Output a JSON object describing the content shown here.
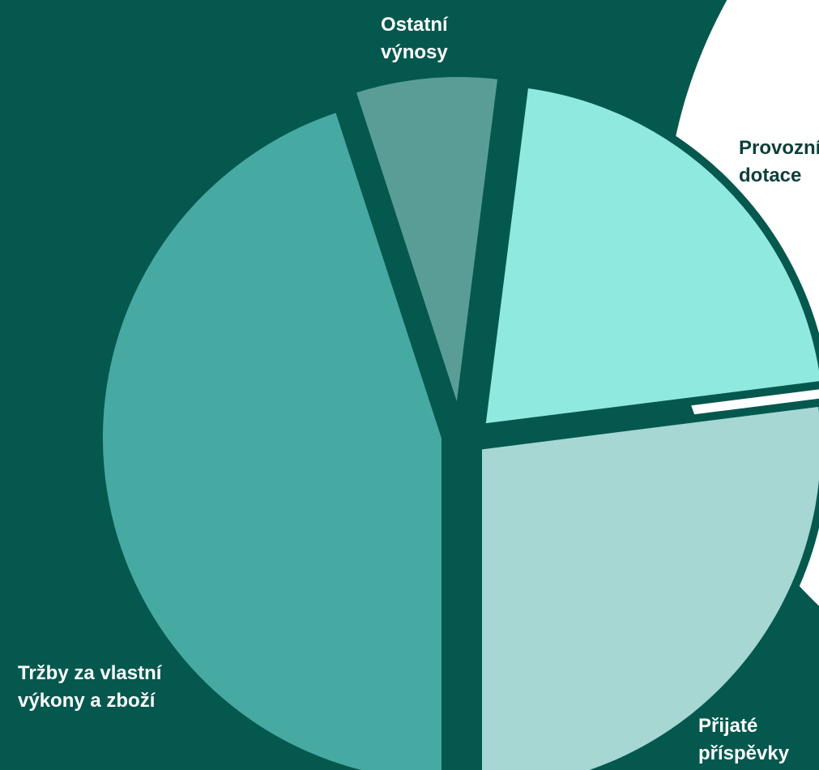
{
  "chart_data": {
    "type": "pie",
    "title": "",
    "slices": [
      {
        "label_lines": [
          "Tržby za vlastní",
          "výkony a zboží"
        ],
        "value": 45,
        "color": "#46aaa3",
        "label_color": "#ffffff"
      },
      {
        "label_lines": [
          "Ostatní",
          "výnosy"
        ],
        "value": 7,
        "color": "#5a9d97",
        "label_color": "#ffffff"
      },
      {
        "label_lines": [
          "Provozní",
          "dotace"
        ],
        "value": 21,
        "color": "#8fe9df",
        "label_color": "#0f3f39"
      },
      {
        "label_lines": [
          "Přijaté",
          "příspěvky"
        ],
        "value": 27,
        "color": "#a6d7d3",
        "label_color": "#ffffff"
      }
    ]
  },
  "colors": {
    "background": "#05584e",
    "decor_circle": "#ffffff"
  }
}
